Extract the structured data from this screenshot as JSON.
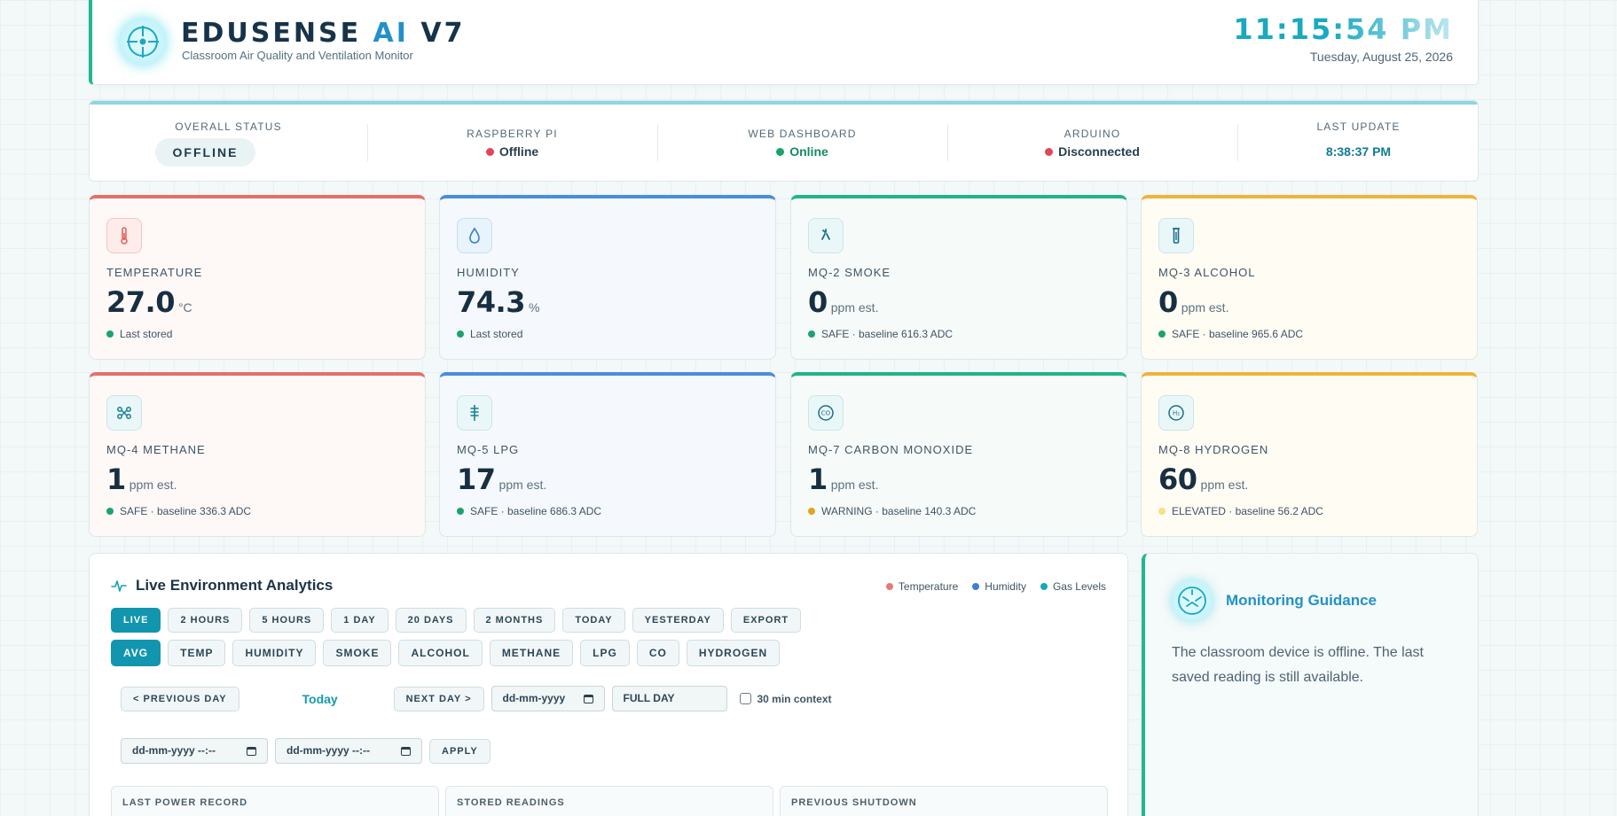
{
  "header": {
    "brand_main": "EDUSENSE ",
    "brand_accent": "AI",
    "brand_version": " V7",
    "subtitle": "Classroom Air Quality and Ventilation Monitor",
    "clock": "11:15:54 PM",
    "date": "Tuesday, August 25, 2026"
  },
  "status": {
    "overall_label": "OVERALL STATUS",
    "overall_value": "OFFLINE",
    "raspberry_label": "RASPBERRY PI",
    "raspberry_value": "Offline",
    "web_label": "WEB DASHBOARD",
    "web_value": "Online",
    "arduino_label": "ARDUINO",
    "arduino_value": "Disconnected",
    "update_label": "LAST UPDATE",
    "update_value": "8:38:37 PM"
  },
  "sensors": [
    {
      "label": "TEMPERATURE",
      "value": "27.0",
      "unit": "°C",
      "status": "Last stored",
      "icon": "thermometer-icon"
    },
    {
      "label": "HUMIDITY",
      "value": "74.3",
      "unit": "%",
      "status": "Last stored",
      "icon": "droplet-icon"
    },
    {
      "label": "MQ-2 SMOKE",
      "value": "0",
      "unit": "ppm est.",
      "status": "SAFE · baseline 616.3 ADC",
      "icon": "smoke-icon"
    },
    {
      "label": "MQ-3 ALCOHOL",
      "value": "0",
      "unit": "ppm est.",
      "status": "SAFE · baseline 965.6 ADC",
      "icon": "alcohol-icon"
    },
    {
      "label": "MQ-4 METHANE",
      "value": "1",
      "unit": "ppm est.",
      "status": "SAFE · baseline 336.3 ADC",
      "icon": "molecule-icon"
    },
    {
      "label": "MQ-5 LPG",
      "value": "17",
      "unit": "ppm est.",
      "status": "SAFE · baseline 686.3 ADC",
      "icon": "lpg-icon"
    },
    {
      "label": "MQ-7 CARBON MONOXIDE",
      "value": "1",
      "unit": "ppm est.",
      "status": "WARNING · baseline 140.3 ADC",
      "icon": "co-icon"
    },
    {
      "label": "MQ-8 HYDROGEN",
      "value": "60",
      "unit": "ppm est.",
      "status": "ELEVATED · baseline 56.2 ADC",
      "icon": "hydrogen-icon"
    }
  ],
  "co_icon_text": "CO",
  "h2_icon_text": "H₂",
  "analytics": {
    "title": "Live Environment Analytics",
    "legend": [
      "Temperature",
      "Humidity",
      "Gas Levels"
    ],
    "range_buttons": [
      "LIVE",
      "2 HOURS",
      "5 HOURS",
      "1 DAY",
      "20 DAYS",
      "2 MONTHS",
      "TODAY",
      "YESTERDAY",
      "EXPORT"
    ],
    "metric_buttons": [
      "AVG",
      "TEMP",
      "HUMIDITY",
      "SMOKE",
      "ALCOHOL",
      "METHANE",
      "LPG",
      "CO",
      "HYDROGEN"
    ],
    "prev_day": "< PREVIOUS DAY",
    "today": "Today",
    "next_day": "NEXT DAY >",
    "date_placeholder": "dd-mm-yyyy",
    "full_day": "FULL DAY",
    "context_label": "30 min context",
    "from_placeholder": "dd-mm-yyyy --:--",
    "to_placeholder": "dd-mm-yyyy --:--",
    "apply": "APPLY",
    "panels": [
      "LAST POWER RECORD",
      "STORED READINGS",
      "PREVIOUS SHUTDOWN"
    ]
  },
  "guidance": {
    "title": "Monitoring Guidance",
    "text": "The classroom device is offline. The last saved reading is still available."
  },
  "colors": {
    "safe": "#1aa36e",
    "offline": "#e0455a",
    "warning": "#e5a21f",
    "elevated": "#f7e08a",
    "accent": "#1295ae"
  }
}
